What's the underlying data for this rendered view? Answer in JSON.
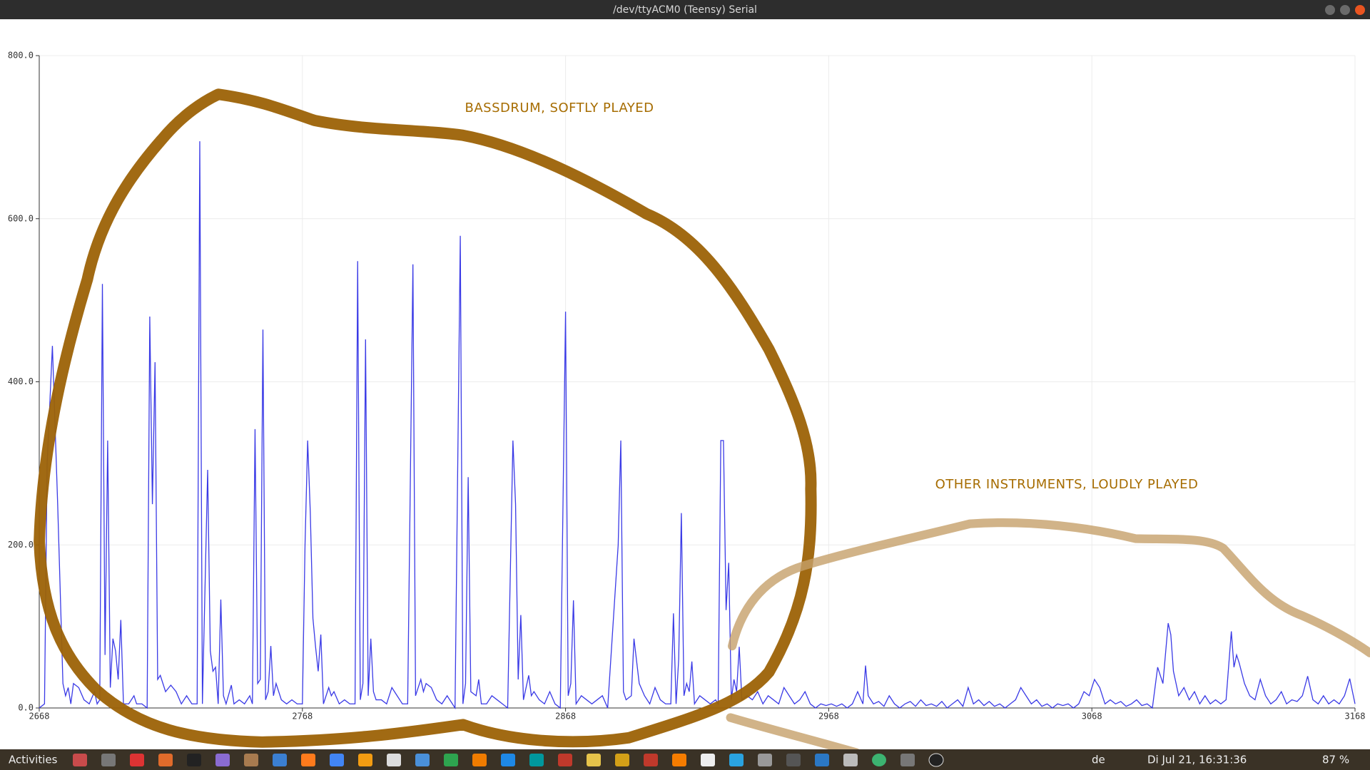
{
  "window": {
    "title": "/dev/ttyACM0 (Teensy) Serial"
  },
  "taskbar": {
    "activities": "Activities",
    "keyboard": "de",
    "clock": "Di Jul 21, 16:31:36",
    "battery": "87 %"
  },
  "chart_data": {
    "type": "line",
    "annotations": [
      "BASSDRUM, SOFTLY PLAYED",
      "OTHER INSTRUMENTS, LOUDLY PLAYED"
    ],
    "color": "#3a3ae6",
    "grid": true,
    "xlim": [
      2668,
      3168
    ],
    "xticks": [
      2668,
      2768,
      2868,
      2968,
      3068,
      3168
    ],
    "ylim": [
      0,
      800
    ],
    "yticks": [
      {
        "value": 0,
        "label": "0.0"
      },
      {
        "value": 200,
        "label": "200.0"
      },
      {
        "value": 400,
        "label": "400.0"
      },
      {
        "value": 600,
        "label": "600.0"
      },
      {
        "value": 800,
        "label": "800.0"
      }
    ],
    "x": [
      2668,
      2670,
      2671,
      2673,
      2675,
      2677,
      2678,
      2679,
      2680,
      2681,
      2683,
      2685,
      2687,
      2689,
      2690,
      2691,
      2692,
      2693,
      2694,
      2695,
      2696,
      2697,
      2698,
      2699,
      2700,
      2702,
      2704,
      2705,
      2707,
      2709,
      2710,
      2711,
      2712,
      2713,
      2714,
      2716,
      2718,
      2720,
      2722,
      2724,
      2726,
      2728,
      2729,
      2730,
      2732,
      2733,
      2734,
      2735,
      2736,
      2737,
      2738,
      2739,
      2741,
      2742,
      2744,
      2746,
      2748,
      2749,
      2750,
      2751,
      2752,
      2753,
      2754,
      2755,
      2756,
      2757,
      2758,
      2760,
      2762,
      2764,
      2766,
      2768,
      2769,
      2770,
      2771,
      2772,
      2773,
      2774,
      2775,
      2776,
      2778,
      2779,
      2780,
      2782,
      2784,
      2786,
      2788,
      2789,
      2790,
      2791,
      2792,
      2793,
      2794,
      2795,
      2796,
      2798,
      2800,
      2802,
      2804,
      2806,
      2808,
      2810,
      2811,
      2812,
      2813,
      2814,
      2815,
      2817,
      2819,
      2821,
      2823,
      2825,
      2826,
      2828,
      2829,
      2830,
      2831,
      2832,
      2834,
      2835,
      2836,
      2838,
      2840,
      2842,
      2844,
      2846,
      2848,
      2849,
      2850,
      2851,
      2852,
      2854,
      2855,
      2856,
      2858,
      2860,
      2862,
      2864,
      2866,
      2868,
      2869,
      2870,
      2871,
      2872,
      2874,
      2876,
      2878,
      2880,
      2882,
      2884,
      2888,
      2889,
      2890,
      2891,
      2893,
      2894,
      2896,
      2898,
      2900,
      2902,
      2904,
      2906,
      2908,
      2909,
      2910,
      2911,
      2912,
      2913,
      2914,
      2915,
      2916,
      2917,
      2919,
      2921,
      2923,
      2925,
      2926,
      2927,
      2928,
      2929,
      2930,
      2931,
      2932,
      2933,
      2934,
      2935,
      2937,
      2939,
      2941,
      2943,
      2945,
      2947,
      2949,
      2951,
      2953,
      2955,
      2957,
      2959,
      2961,
      2963,
      2965,
      2967,
      2969,
      2971,
      2973,
      2975,
      2977,
      2979,
      2981,
      2982,
      2983,
      2985,
      2987,
      2989,
      2991,
      2993,
      2995,
      2997,
      2999,
      3001,
      3003,
      3005,
      3007,
      3009,
      3011,
      3013,
      3015,
      3017,
      3019,
      3021,
      3023,
      3025,
      3027,
      3029,
      3031,
      3033,
      3035,
      3037,
      3039,
      3041,
      3043,
      3045,
      3047,
      3049,
      3051,
      3053,
      3055,
      3057,
      3059,
      3061,
      3063,
      3065,
      3067,
      3069,
      3071,
      3073,
      3075,
      3077,
      3079,
      3081,
      3083,
      3085,
      3087,
      3089,
      3091,
      3093,
      3095,
      3097,
      3098,
      3099,
      3101,
      3103,
      3105,
      3107,
      3109,
      3111,
      3113,
      3115,
      3117,
      3119,
      3121,
      3122,
      3123,
      3124,
      3126,
      3128,
      3130,
      3132,
      3134,
      3136,
      3138,
      3140,
      3142,
      3144,
      3146,
      3148,
      3150,
      3152,
      3154,
      3156,
      3158,
      3160,
      3162,
      3164,
      3166,
      3168
    ],
    "values": [
      0,
      5,
      300,
      444,
      250,
      30,
      15,
      25,
      5,
      30,
      25,
      10,
      5,
      20,
      5,
      10,
      520,
      65,
      328,
      25,
      85,
      70,
      35,
      108,
      5,
      5,
      15,
      5,
      5,
      0,
      480,
      250,
      424,
      35,
      40,
      20,
      28,
      20,
      5,
      15,
      5,
      5,
      695,
      5,
      292,
      70,
      45,
      50,
      5,
      133,
      15,
      5,
      28,
      5,
      10,
      5,
      15,
      5,
      342,
      30,
      35,
      464,
      10,
      20,
      76,
      15,
      30,
      10,
      5,
      10,
      5,
      5,
      200,
      328,
      240,
      110,
      75,
      45,
      90,
      5,
      25,
      15,
      20,
      5,
      10,
      5,
      5,
      548,
      10,
      30,
      452,
      15,
      85,
      20,
      10,
      10,
      5,
      25,
      15,
      5,
      5,
      544,
      15,
      25,
      35,
      20,
      30,
      25,
      10,
      5,
      15,
      5,
      0,
      579,
      5,
      30,
      283,
      20,
      15,
      35,
      5,
      5,
      15,
      10,
      5,
      0,
      328,
      250,
      35,
      114,
      10,
      40,
      15,
      20,
      10,
      5,
      20,
      5,
      0,
      486,
      15,
      30,
      132,
      5,
      15,
      10,
      5,
      10,
      15,
      0,
      200,
      328,
      20,
      10,
      15,
      85,
      30,
      15,
      5,
      25,
      10,
      5,
      5,
      116,
      5,
      60,
      239,
      15,
      30,
      20,
      57,
      5,
      15,
      10,
      5,
      10,
      5,
      328,
      328,
      120,
      178,
      10,
      35,
      20,
      75,
      10,
      15,
      10,
      20,
      5,
      15,
      10,
      5,
      25,
      15,
      5,
      10,
      20,
      5,
      0,
      5,
      3,
      5,
      2,
      5,
      0,
      5,
      20,
      5,
      52,
      15,
      5,
      8,
      2,
      15,
      5,
      0,
      5,
      8,
      2,
      10,
      3,
      5,
      2,
      8,
      0,
      5,
      10,
      2,
      25,
      5,
      10,
      3,
      8,
      2,
      5,
      0,
      5,
      10,
      25,
      15,
      5,
      10,
      2,
      5,
      0,
      5,
      3,
      5,
      0,
      5,
      20,
      15,
      35,
      25,
      5,
      10,
      5,
      8,
      2,
      5,
      10,
      3,
      5,
      0,
      50,
      30,
      104,
      90,
      45,
      15,
      25,
      10,
      20,
      5,
      15,
      5,
      10,
      5,
      10,
      94,
      50,
      65,
      55,
      30,
      15,
      10,
      35,
      15,
      5,
      10,
      20,
      5,
      10,
      8,
      15,
      39,
      10,
      5,
      15,
      5,
      10,
      5,
      15,
      36,
      5
    ]
  }
}
